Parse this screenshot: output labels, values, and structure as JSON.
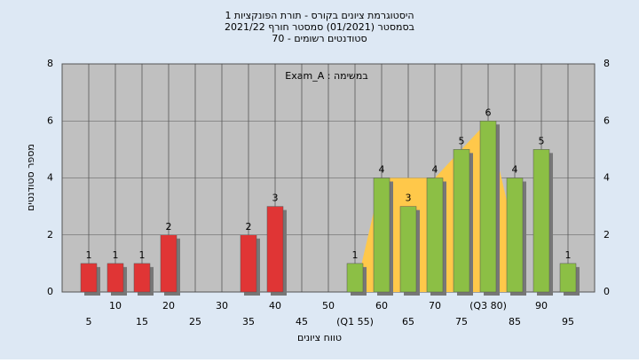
{
  "chart_data": {
    "type": "bar",
    "title": "היסטוגרמת ציונים בקורס - תורת הפונקציות 1",
    "subtitle": "בסמסטר  (01/2021)  סמסטר חורף  2021/22",
    "subtitle2": "סטודנטים רשומים - 70",
    "annotation": "Exam_A : במשימה",
    "x_label": "טווח ציונים",
    "y_label": "מספר סטודנטים",
    "categories": [
      "5",
      "10",
      "15",
      "20",
      "25",
      "30",
      "35",
      "40",
      "45",
      "50",
      "(Q1 55)",
      "60",
      "65",
      "70",
      "75",
      "(Q3 80)",
      "85",
      "90",
      "95"
    ],
    "values": [
      1,
      1,
      1,
      2,
      0,
      0,
      2,
      3,
      0,
      0,
      1,
      4,
      3,
      4,
      5,
      6,
      4,
      5,
      1
    ],
    "colors": [
      "#e03535",
      "#e03535",
      "#e03535",
      "#e03535",
      "#e03535",
      "#e03535",
      "#e03535",
      "#e03535",
      "#e03535",
      "#e03535",
      "#8cbf45",
      "#8cbf45",
      "#8cbf45",
      "#8cbf45",
      "#8cbf45",
      "#8cbf45",
      "#8cbf45",
      "#8cbf45",
      "#8cbf45"
    ],
    "area_values": [
      null,
      null,
      null,
      null,
      null,
      null,
      null,
      null,
      null,
      null,
      0,
      4,
      4,
      4,
      5,
      6,
      2,
      null,
      null
    ],
    "area_color": "#ffc84a",
    "ylim": [
      0,
      8
    ],
    "yticks": [
      0,
      2,
      4,
      6,
      8
    ],
    "grid": true
  }
}
